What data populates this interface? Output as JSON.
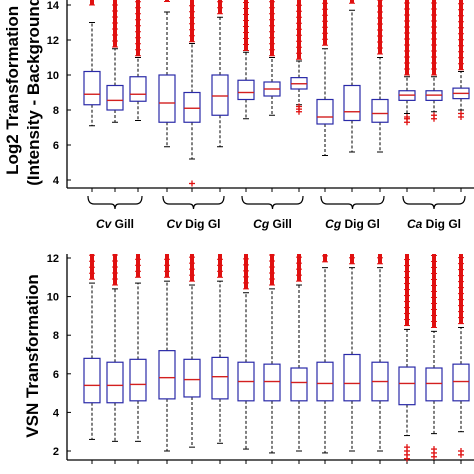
{
  "figure": {
    "style": {
      "box_color": "#2a2aa8",
      "median_color": "#d32020",
      "outlier_color": "#e01010",
      "whisker_color": "#000000",
      "axis_color": "#000000"
    }
  },
  "chart_data": [
    {
      "type": "box",
      "ylabel_lines": [
        "Log2 Transformation",
        "(Intensity - Background)"
      ],
      "ylim": [
        3.2,
        14.8
      ],
      "yticks": [
        4,
        6,
        8,
        10,
        12,
        14
      ],
      "grid": false,
      "legend": "none",
      "groups": [
        {
          "species": "Cv",
          "tissue": " Gill",
          "boxes": [
            0,
            1,
            2
          ]
        },
        {
          "species": "Cv",
          "tissue": " Dig Gl",
          "boxes": [
            3,
            4,
            5
          ]
        },
        {
          "species": "Cg",
          "tissue": " Gill",
          "boxes": [
            6,
            7,
            8
          ]
        },
        {
          "species": "Cg",
          "tissue": " Dig Gl",
          "boxes": [
            9,
            10,
            11
          ]
        },
        {
          "species": "Ca",
          "tissue": " Dig Gl",
          "boxes": [
            12,
            13,
            14
          ]
        }
      ],
      "boxes": [
        {
          "q1": 8.3,
          "median": 8.9,
          "q3": 10.2,
          "whisker_low": 7.1,
          "whisker_high": 13.0,
          "outlier_high_from": 14.0,
          "outlier_low": []
        },
        {
          "q1": 8.0,
          "median": 8.55,
          "q3": 9.4,
          "whisker_low": 7.3,
          "whisker_high": 11.5,
          "outlier_high_from": 11.6,
          "outlier_low": []
        },
        {
          "q1": 8.5,
          "median": 8.9,
          "q3": 9.9,
          "whisker_low": 7.4,
          "whisker_high": 11.0,
          "outlier_high_from": 11.1,
          "outlier_low": []
        },
        {
          "q1": 7.3,
          "median": 8.4,
          "q3": 10.0,
          "whisker_low": 5.9,
          "whisker_high": 13.6,
          "outlier_high_from": 14.2,
          "outlier_low": []
        },
        {
          "q1": 7.3,
          "median": 8.1,
          "q3": 9.0,
          "whisker_low": 5.2,
          "whisker_high": 11.8,
          "outlier_high_from": 11.9,
          "outlier_low": [
            3.8
          ]
        },
        {
          "q1": 7.7,
          "median": 8.8,
          "q3": 10.0,
          "whisker_low": 5.9,
          "whisker_high": 13.3,
          "outlier_high_from": 13.5,
          "outlier_low": []
        },
        {
          "q1": 8.6,
          "median": 9.0,
          "q3": 9.7,
          "whisker_low": 7.5,
          "whisker_high": 11.3,
          "outlier_high_from": 11.4,
          "outlier_low": []
        },
        {
          "q1": 8.8,
          "median": 9.2,
          "q3": 9.6,
          "whisker_low": 7.7,
          "whisker_high": 11.0,
          "outlier_high_from": 11.1,
          "outlier_low": []
        },
        {
          "q1": 9.2,
          "median": 9.5,
          "q3": 9.85,
          "whisker_low": 8.3,
          "whisker_high": 10.8,
          "outlier_high_from": 10.9,
          "outlier_low": [
            7.9,
            8.05,
            8.2
          ]
        },
        {
          "q1": 7.2,
          "median": 7.6,
          "q3": 8.6,
          "whisker_low": 5.4,
          "whisker_high": 11.5,
          "outlier_high_from": 11.7,
          "outlier_low": []
        },
        {
          "q1": 7.4,
          "median": 7.9,
          "q3": 9.4,
          "whisker_low": 5.6,
          "whisker_high": 13.7,
          "outlier_high_from": 14.1,
          "outlier_low": []
        },
        {
          "q1": 7.3,
          "median": 7.8,
          "q3": 8.6,
          "whisker_low": 5.6,
          "whisker_high": 11.0,
          "outlier_high_from": 11.2,
          "outlier_low": []
        },
        {
          "q1": 8.55,
          "median": 8.85,
          "q3": 9.1,
          "whisker_low": 7.8,
          "whisker_high": 9.9,
          "outlier_high_from": 10.0,
          "outlier_low": [
            7.3,
            7.5,
            7.6
          ]
        },
        {
          "q1": 8.55,
          "median": 8.85,
          "q3": 9.1,
          "whisker_low": 7.9,
          "whisker_high": 9.9,
          "outlier_high_from": 10.0,
          "outlier_low": [
            7.5,
            7.7
          ]
        },
        {
          "q1": 8.65,
          "median": 8.95,
          "q3": 9.25,
          "whisker_low": 8.0,
          "whisker_high": 10.2,
          "outlier_high_from": 10.3,
          "outlier_low": [
            7.6,
            7.8
          ]
        }
      ]
    },
    {
      "type": "box",
      "ylabel_lines": [
        "VSN Transformation"
      ],
      "ylim": [
        1.4,
        12.7
      ],
      "yticks": [
        2,
        4,
        6,
        8,
        10,
        12
      ],
      "grid": false,
      "legend": "none",
      "boxes": [
        {
          "q1": 4.5,
          "median": 5.4,
          "q3": 6.8,
          "whisker_low": 2.6,
          "whisker_high": 10.7,
          "outlier_high_from": 10.9,
          "outlier_low": []
        },
        {
          "q1": 4.5,
          "median": 5.4,
          "q3": 6.6,
          "whisker_low": 2.5,
          "whisker_high": 10.4,
          "outlier_high_from": 10.6,
          "outlier_low": []
        },
        {
          "q1": 4.6,
          "median": 5.45,
          "q3": 6.75,
          "whisker_low": 2.5,
          "whisker_high": 10.7,
          "outlier_high_from": 11.0,
          "outlier_low": []
        },
        {
          "q1": 4.7,
          "median": 5.8,
          "q3": 7.2,
          "whisker_low": 2.0,
          "whisker_high": 10.8,
          "outlier_high_from": 11.0,
          "outlier_low": []
        },
        {
          "q1": 4.8,
          "median": 5.7,
          "q3": 6.75,
          "whisker_low": 2.2,
          "whisker_high": 10.6,
          "outlier_high_from": 10.8,
          "outlier_low": []
        },
        {
          "q1": 4.7,
          "median": 5.85,
          "q3": 6.85,
          "whisker_low": 2.4,
          "whisker_high": 10.8,
          "outlier_high_from": 11.0,
          "outlier_low": []
        },
        {
          "q1": 4.6,
          "median": 5.6,
          "q3": 6.6,
          "whisker_low": 2.1,
          "whisker_high": 10.2,
          "outlier_high_from": 10.4,
          "outlier_low": []
        },
        {
          "q1": 4.6,
          "median": 5.6,
          "q3": 6.5,
          "whisker_low": 1.9,
          "whisker_high": 10.4,
          "outlier_high_from": 10.6,
          "outlier_low": []
        },
        {
          "q1": 4.6,
          "median": 5.55,
          "q3": 6.3,
          "whisker_low": 2.0,
          "whisker_high": 10.6,
          "outlier_high_from": 10.8,
          "outlier_low": []
        },
        {
          "q1": 4.6,
          "median": 5.5,
          "q3": 6.6,
          "whisker_low": 1.9,
          "whisker_high": 11.5,
          "outlier_high_from": 11.8,
          "outlier_low": []
        },
        {
          "q1": 4.6,
          "median": 5.5,
          "q3": 7.0,
          "whisker_low": 2.0,
          "whisker_high": 11.5,
          "outlier_high_from": 11.7,
          "outlier_low": []
        },
        {
          "q1": 4.6,
          "median": 5.6,
          "q3": 6.6,
          "whisker_low": 2.0,
          "whisker_high": 11.5,
          "outlier_high_from": 11.7,
          "outlier_low": []
        },
        {
          "q1": 4.4,
          "median": 5.5,
          "q3": 6.35,
          "whisker_low": 2.8,
          "whisker_high": 8.3,
          "outlier_high_from": 8.5,
          "outlier_low": [
            1.6,
            1.8,
            2.0,
            2.2
          ]
        },
        {
          "q1": 4.6,
          "median": 5.5,
          "q3": 6.3,
          "whisker_low": 2.9,
          "whisker_high": 8.2,
          "outlier_high_from": 8.4,
          "outlier_low": [
            1.7,
            1.9,
            2.1
          ]
        },
        {
          "q1": 4.6,
          "median": 5.6,
          "q3": 6.5,
          "whisker_low": 3.0,
          "whisker_high": 8.4,
          "outlier_high_from": 8.6,
          "outlier_low": [
            1.8,
            2.0
          ]
        }
      ]
    }
  ]
}
